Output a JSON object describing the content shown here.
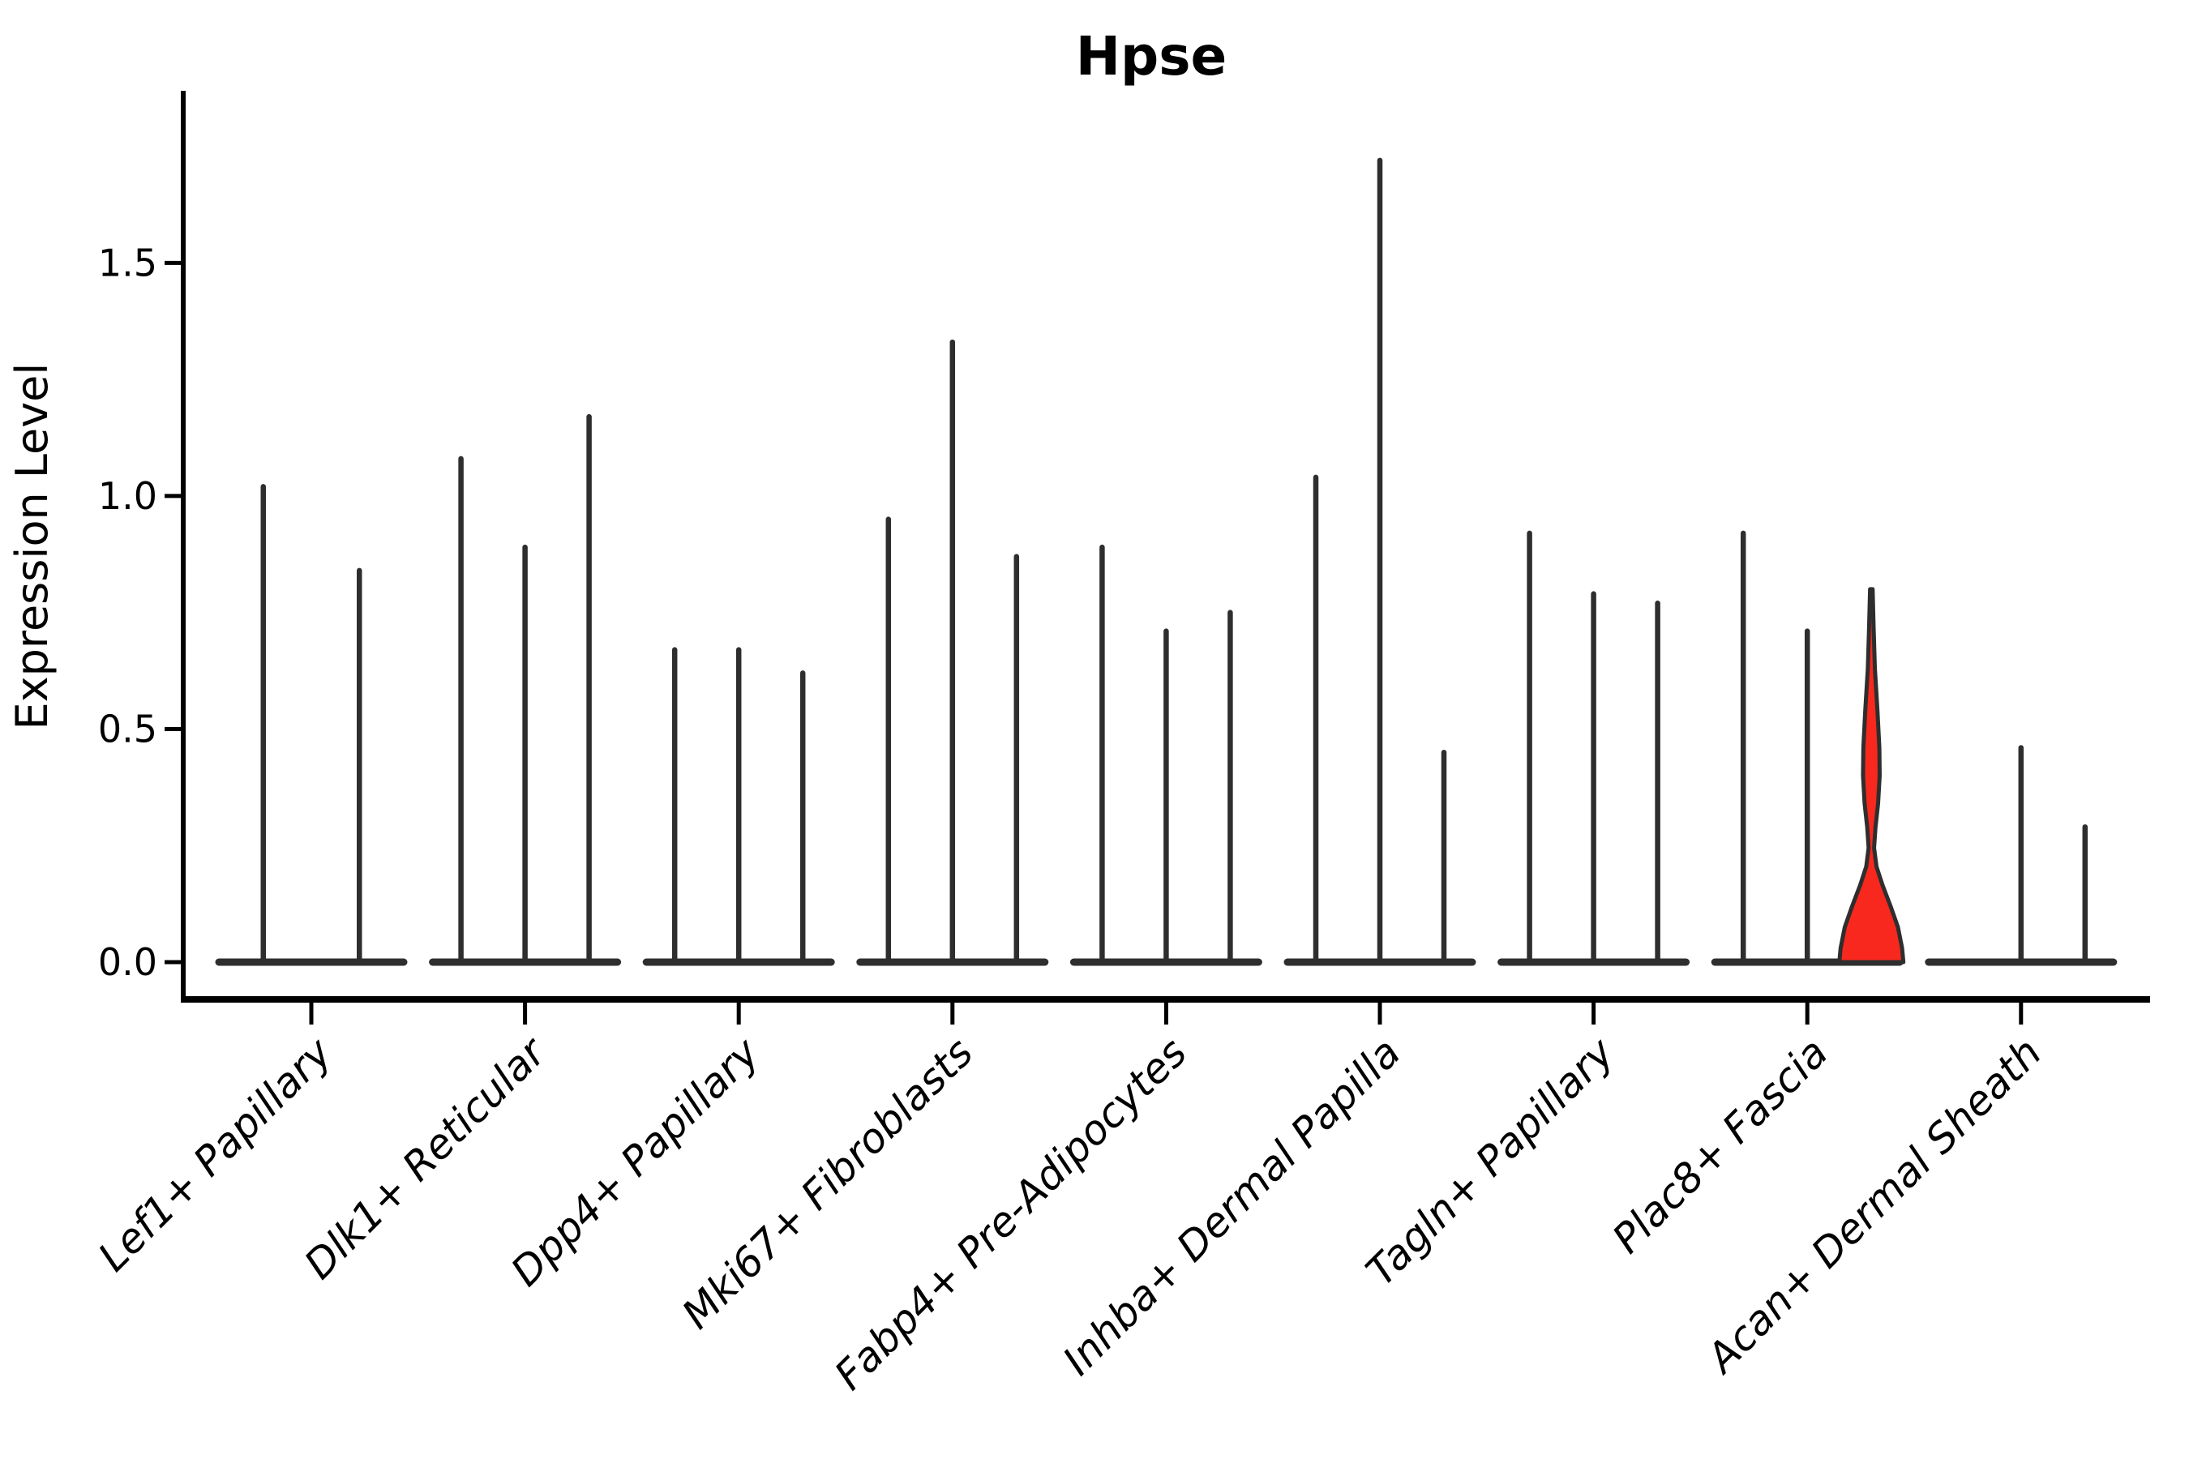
{
  "figure": {
    "title": "Hpse",
    "ylabel": "Expression Level",
    "background": "#ffffff"
  },
  "chart_data": {
    "type": "violin",
    "title": "Hpse",
    "xlabel": "",
    "ylabel": "Expression Level",
    "ylim": [
      0,
      1.864
    ],
    "ytick_values": [
      0.0,
      0.5,
      1.0,
      1.5
    ],
    "yticks": [
      "0.0",
      "0.5",
      "1.0",
      "1.5"
    ],
    "grid": false,
    "legend_position": "none",
    "colors": {
      "violin_stroke": "#2e2e2e",
      "highlight_fill": "#f8281e",
      "axis": "#000000",
      "background": "#ffffff"
    },
    "categories": [
      "Lef1+ Papillary",
      "Dlk1+ Reticular",
      "Dpp4+ Papillary",
      "Mki67+ Fibroblasts",
      "Fabp4+ Pre-Adipocytes",
      "Inhba+ Dermal Papilla",
      "Tagln+ Papillary",
      "Plac8+ Fascia",
      "Acan+ Dermal Sheath"
    ],
    "groups": [
      {
        "category": "Lef1+ Papillary",
        "violins": [
          {
            "max": 1.02
          },
          {
            "max": 0.84
          }
        ]
      },
      {
        "category": "Dlk1+ Reticular",
        "violins": [
          {
            "max": 1.08
          },
          {
            "max": 0.89
          },
          {
            "max": 1.17
          }
        ]
      },
      {
        "category": "Dpp4+ Papillary",
        "violins": [
          {
            "max": 0.67
          },
          {
            "max": 0.67
          },
          {
            "max": 0.62
          }
        ]
      },
      {
        "category": "Mki67+ Fibroblasts",
        "violins": [
          {
            "max": 0.95
          },
          {
            "max": 1.33
          },
          {
            "max": 0.87
          }
        ]
      },
      {
        "category": "Fabp4+ Pre-Adipocytes",
        "violins": [
          {
            "max": 0.89
          },
          {
            "max": 0.71
          },
          {
            "max": 0.75
          }
        ]
      },
      {
        "category": "Inhba+ Dermal Papilla",
        "violins": [
          {
            "max": 1.04
          },
          {
            "max": 1.72
          },
          {
            "max": 0.45
          }
        ]
      },
      {
        "category": "Tagln+ Papillary",
        "violins": [
          {
            "max": 0.92
          },
          {
            "max": 0.79
          },
          {
            "max": 0.77
          }
        ]
      },
      {
        "category": "Plac8+ Fascia",
        "violins": [
          {
            "max": 0.92
          },
          {
            "max": 0.71
          },
          {
            "max": 0.8,
            "highlight": true,
            "fill": "#f8281e",
            "profile": [
              [
                0.8,
                0.04
              ],
              [
                0.72,
                0.07
              ],
              [
                0.63,
                0.11
              ],
              [
                0.54,
                0.19
              ],
              [
                0.46,
                0.25
              ],
              [
                0.4,
                0.26
              ],
              [
                0.34,
                0.21
              ],
              [
                0.29,
                0.13
              ],
              [
                0.245,
                0.085
              ],
              [
                0.205,
                0.16
              ],
              [
                0.165,
                0.35
              ],
              [
                0.12,
                0.6
              ],
              [
                0.075,
                0.83
              ],
              [
                0.03,
                0.96
              ],
              [
                0.0,
                1.0
              ]
            ]
          }
        ]
      },
      {
        "category": "Acan+ Dermal Sheath",
        "violins": [
          {
            "max": 0
          },
          {
            "max": 0.46
          },
          {
            "max": 0.29
          }
        ]
      }
    ]
  }
}
